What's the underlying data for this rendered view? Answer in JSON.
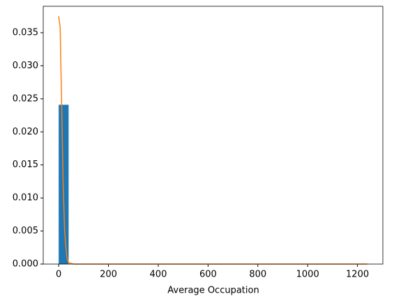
{
  "chart_data": {
    "type": "histogram",
    "xlabel": "Average Occupation",
    "bins": [
      0,
      40,
      80,
      120,
      160,
      200,
      240,
      280,
      320,
      360,
      400,
      440,
      480,
      520,
      560,
      600,
      640,
      680,
      720,
      760,
      800,
      840,
      880,
      920,
      960,
      1000,
      1040,
      1080,
      1120,
      1160,
      1200,
      1240
    ],
    "counts": [
      0.0241,
      0,
      0,
      0,
      0,
      0,
      0,
      0,
      0,
      0,
      0,
      0,
      0,
      0,
      0,
      0,
      0,
      0,
      0,
      0,
      0,
      0,
      0,
      0,
      0,
      0,
      0,
      0,
      0,
      0,
      0
    ],
    "color": "#1f77b4",
    "line": {
      "color": "#ff7f0e",
      "x": [
        0,
        6,
        12,
        18,
        24,
        28,
        33,
        40,
        60,
        1240
      ],
      "values": [
        0.0375,
        0.0358,
        0.024,
        0.012,
        0.005,
        0.003,
        0.001,
        0.0002,
        0,
        0
      ]
    },
    "xlim": [
      -62,
      1302
    ],
    "xticks": [
      0,
      200,
      400,
      600,
      800,
      1000,
      1200
    ],
    "ylim": [
      0,
      0.039
    ],
    "yticks": [
      {
        "value": 0,
        "label": "0.000"
      },
      0.005,
      {
        "value": 0.01,
        "label": "0.010"
      },
      0.015,
      {
        "value": 0.02,
        "label": "0.020"
      },
      0.025,
      {
        "value": 0.03,
        "label": "0.030"
      },
      0.035
    ]
  }
}
